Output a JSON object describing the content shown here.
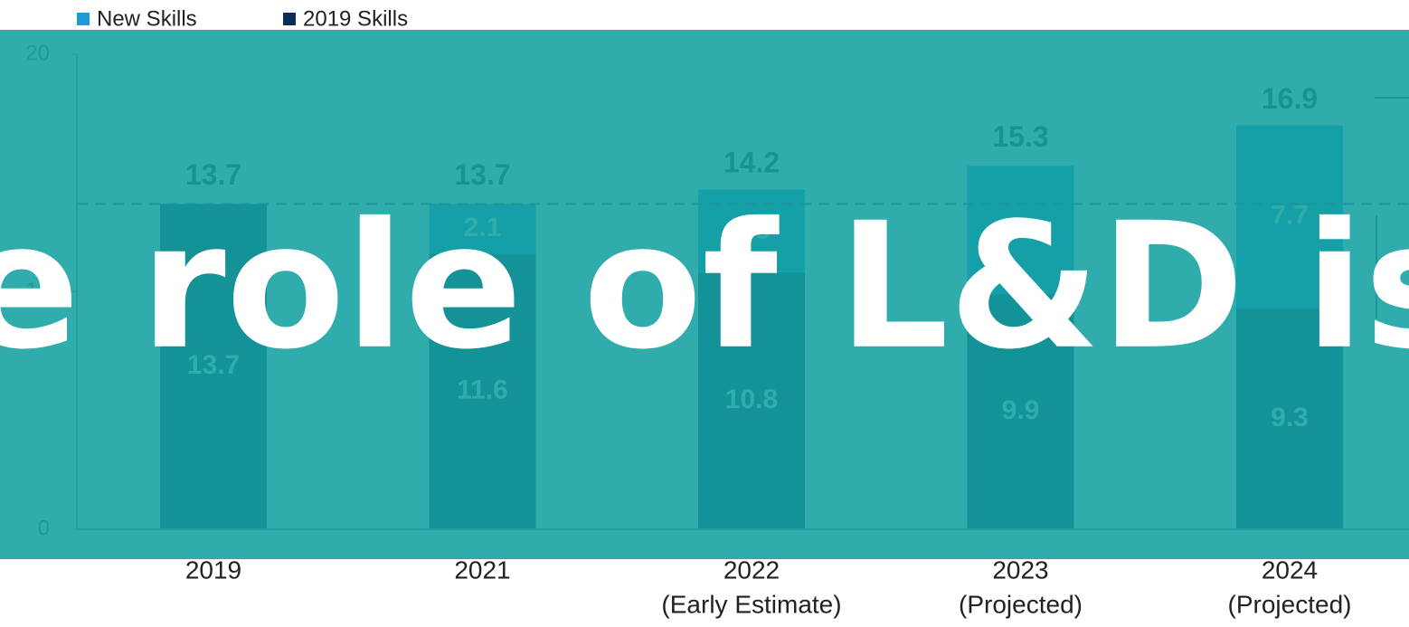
{
  "overlay_title": "e role of L&D is ch",
  "chart_data": {
    "type": "stacked_bar",
    "categories": [
      "2019",
      "2021",
      "2022",
      "2023",
      "2024"
    ],
    "category_notes": [
      null,
      null,
      "(Early Estimate)",
      "(Projected)",
      "(Projected)"
    ],
    "series": [
      {
        "name": "2019 Skills",
        "color": "#0b2c5c",
        "values": [
          13.7,
          11.6,
          10.8,
          9.9,
          9.3
        ]
      },
      {
        "name": "New Skills",
        "color": "#1b9bd7",
        "values": [
          null,
          2.1,
          3.5,
          5.4,
          7.7
        ]
      }
    ],
    "totals": [
      13.7,
      13.7,
      14.2,
      15.3,
      16.9
    ],
    "reference_line": 13.7,
    "ylim": [
      0,
      20
    ],
    "yticks": [
      0,
      10,
      20
    ]
  }
}
